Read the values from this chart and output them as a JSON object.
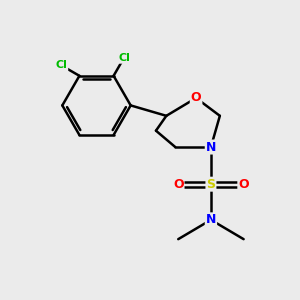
{
  "background_color": "#ebebeb",
  "atom_colors": {
    "C": "#000000",
    "Cl": "#00bb00",
    "O": "#ff0000",
    "N": "#0000ff",
    "S": "#cccc00"
  },
  "bond_color": "#000000",
  "bond_width": 1.8,
  "figsize": [
    3.0,
    3.0
  ],
  "dpi": 100
}
